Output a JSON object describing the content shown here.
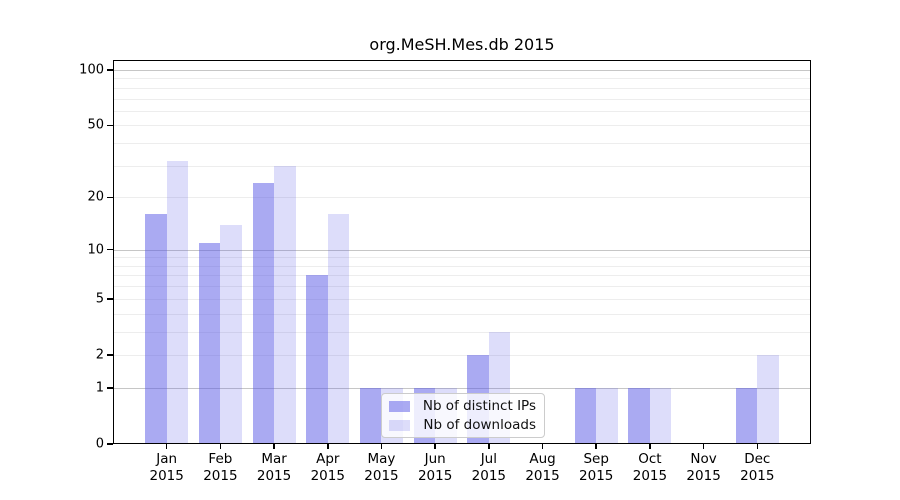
{
  "chart_data": {
    "type": "bar",
    "title": "org.MeSH.Mes.db 2015",
    "xlabel": "",
    "ylabel": "",
    "y_scale": "log1p",
    "categories": [
      "Jan",
      "Feb",
      "Mar",
      "Apr",
      "May",
      "Jun",
      "Jul",
      "Aug",
      "Sep",
      "Oct",
      "Nov",
      "Dec"
    ],
    "category_year": "2015",
    "series": [
      {
        "name": "Nb of distinct IPs",
        "color": "#5555e6",
        "alpha": 0.5,
        "values": [
          16,
          11,
          24,
          7,
          1,
          1,
          2,
          0,
          1,
          1,
          0,
          1
        ]
      },
      {
        "name": "Nb of downloads",
        "color": "#5555e6",
        "alpha": 0.2,
        "values": [
          32,
          14,
          30,
          16,
          1,
          1,
          3,
          0,
          1,
          1,
          0,
          2
        ]
      }
    ],
    "y_ticks": [
      0,
      1,
      2,
      5,
      10,
      20,
      50,
      100
    ],
    "grid_major": [
      1,
      10,
      100
    ],
    "grid_minor": [
      2,
      3,
      4,
      5,
      6,
      7,
      8,
      9,
      20,
      30,
      40,
      50,
      60,
      70,
      80,
      90
    ],
    "ylim": [
      0,
      117
    ],
    "legend_position": "lower center",
    "grid": "on"
  },
  "colors": {
    "background": "#ffffff",
    "axis": "#000000",
    "grid_major": "#c6c6c6",
    "grid_minor": "#ededed",
    "legend_border": "#cccccc"
  }
}
